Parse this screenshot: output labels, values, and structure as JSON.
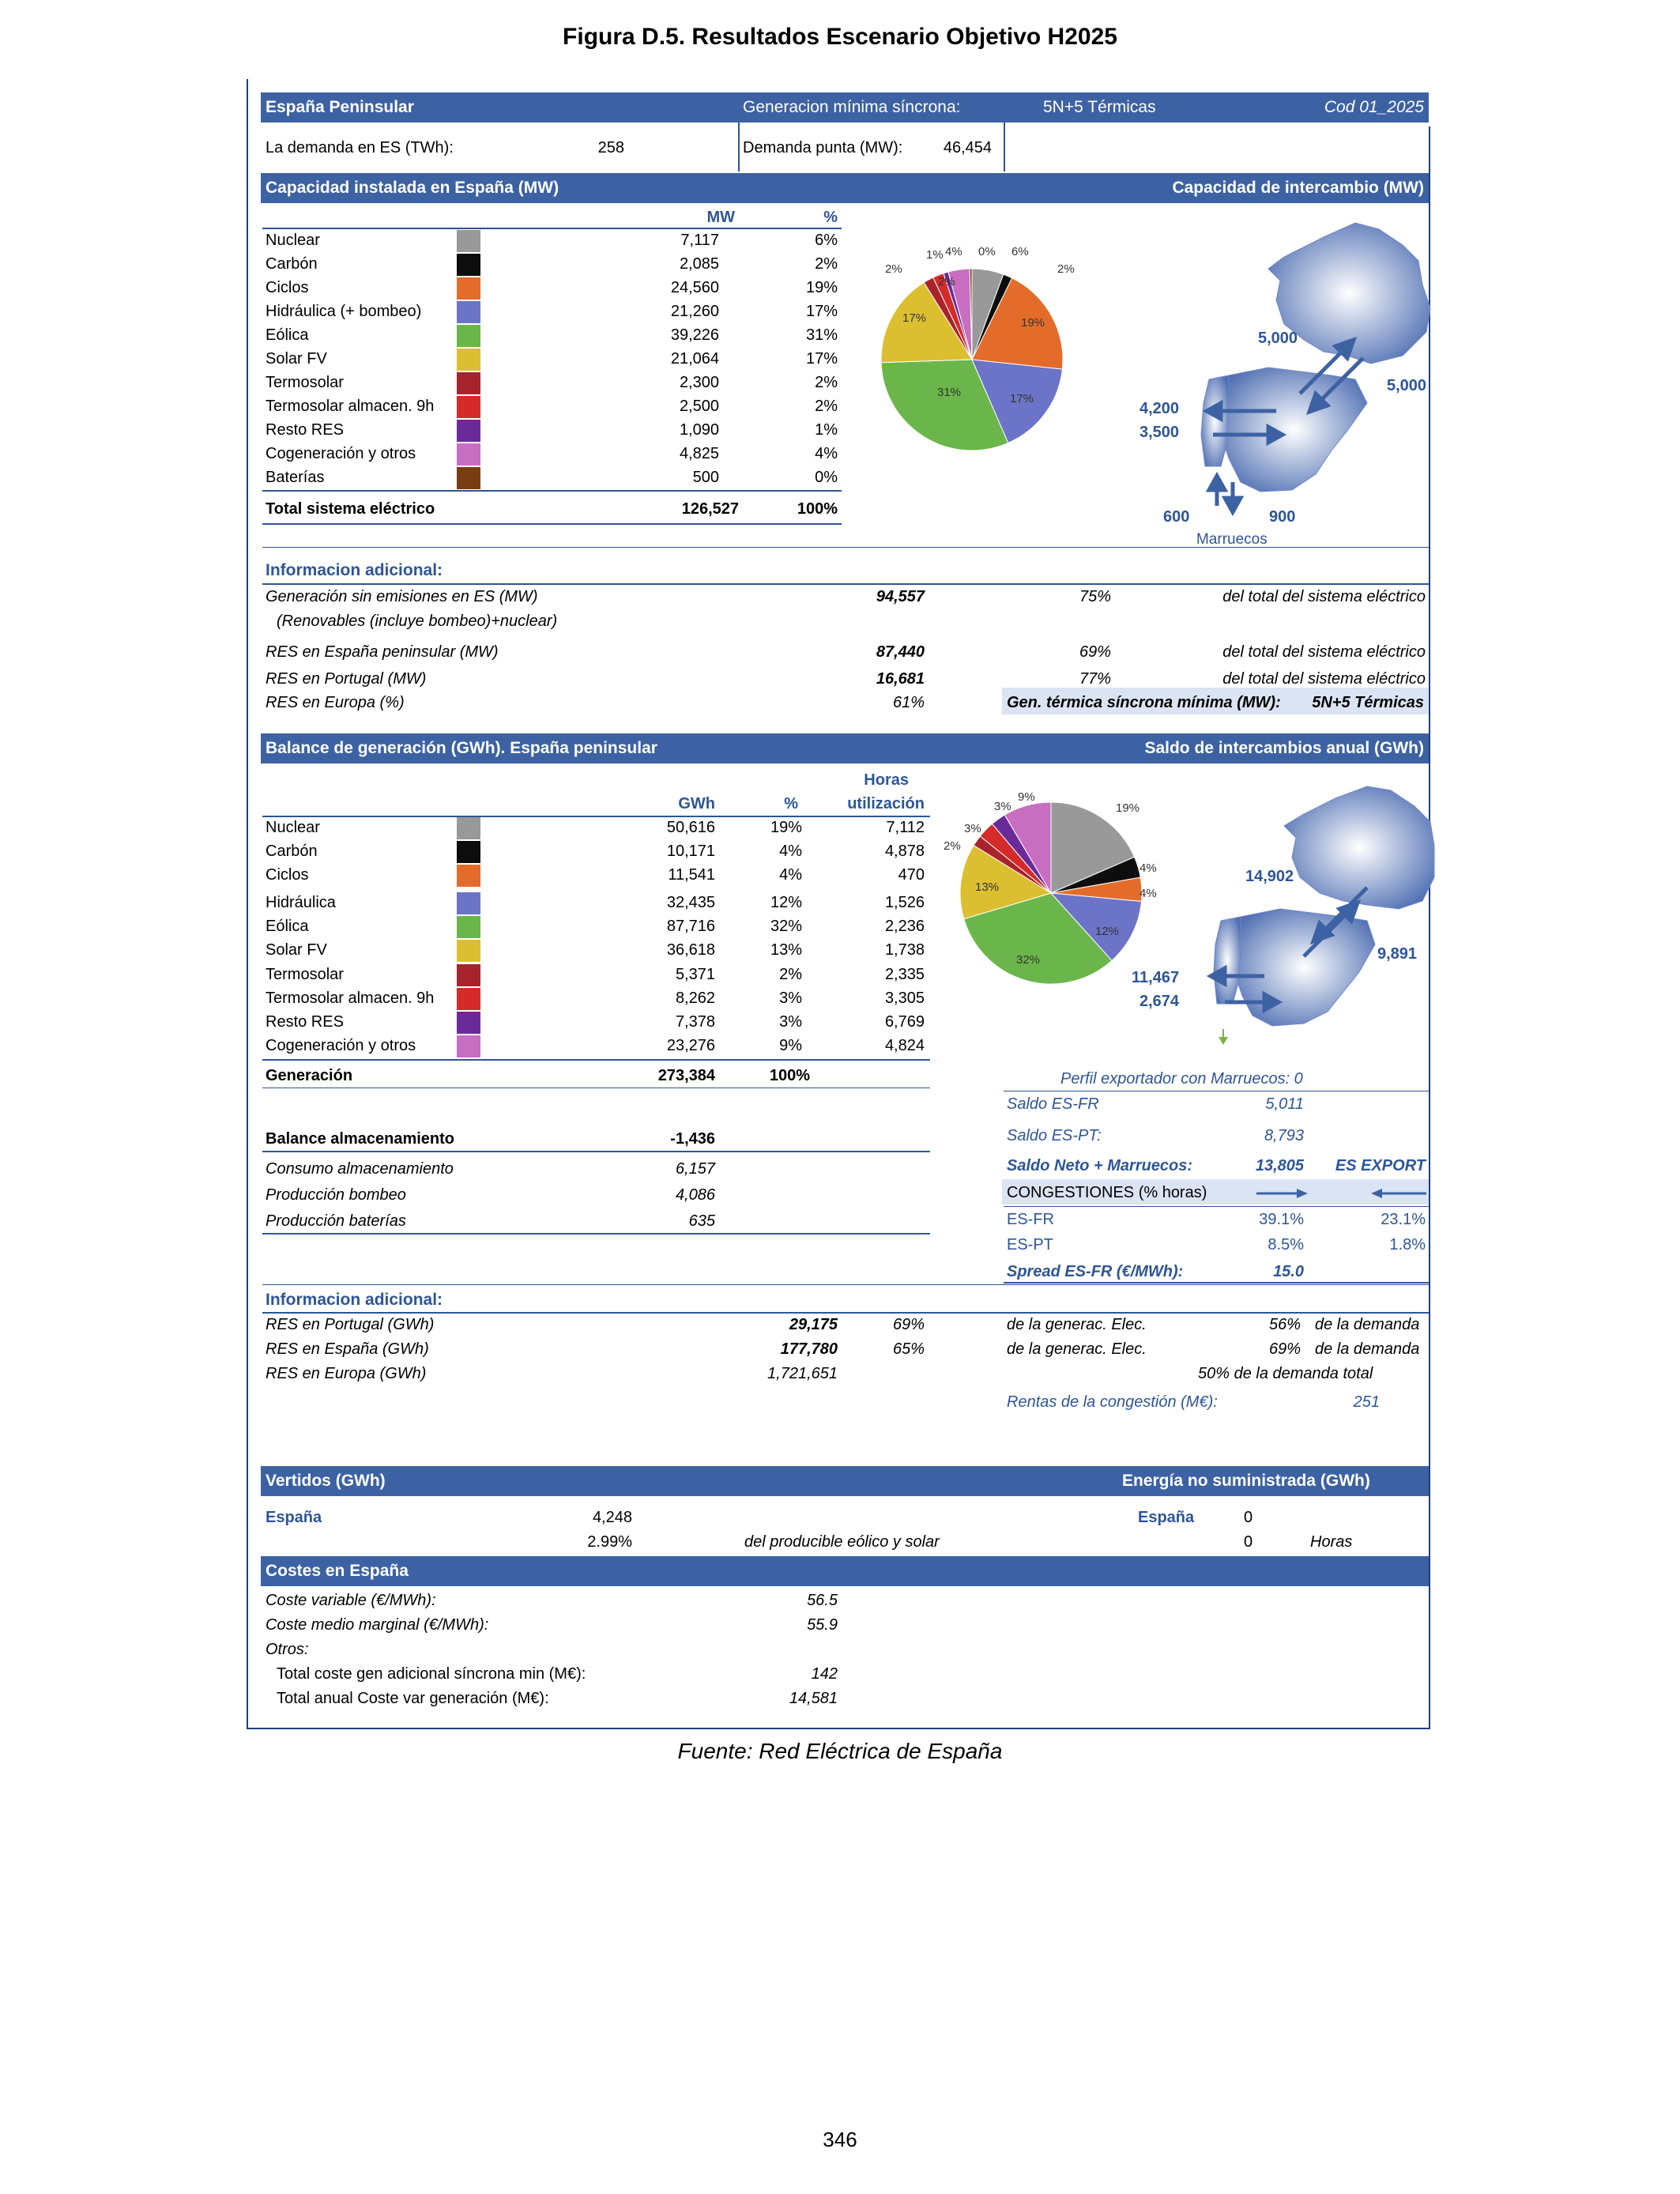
{
  "page_title": "Figura D.5. Resultados Escenario Objetivo H2025",
  "header": {
    "region": "España Peninsular",
    "gen_min_label": "Generacion mínima síncrona:",
    "gen_min_value": "5N+5 Térmicas",
    "code": "Cod 01_2025",
    "demand_label": "La demanda en ES (TWh):",
    "demand_value": "258",
    "peak_label": "Demanda punta (MW):",
    "peak_value": "46,454"
  },
  "capacity": {
    "title": "Capacidad instalada en España (MW)",
    "exchange_title": "Capacidad de intercambio (MW)",
    "col_mw": "MW",
    "col_pct": "%",
    "rows": [
      {
        "name": "Nuclear",
        "mw": "7,117",
        "pct": "6%",
        "color": "#999999"
      },
      {
        "name": "Carbón",
        "mw": "2,085",
        "pct": "2%",
        "color": "#0d0d0d"
      },
      {
        "name": "Ciclos",
        "mw": "24,560",
        "pct": "19%",
        "color": "#e46c2a"
      },
      {
        "name": "Hidráulica (+ bombeo)",
        "mw": "21,260",
        "pct": "17%",
        "color": "#6b74c6"
      },
      {
        "name": "Eólica",
        "mw": "39,226",
        "pct": "31%",
        "color": "#6ab64a"
      },
      {
        "name": "Solar FV",
        "mw": "21,064",
        "pct": "17%",
        "color": "#dcbf30"
      },
      {
        "name": "Termosolar",
        "mw": "2,300",
        "pct": "2%",
        "color": "#a8232c"
      },
      {
        "name": "Termosolar almacen. 9h",
        "mw": "2,500",
        "pct": "2%",
        "color": "#d42a2a"
      },
      {
        "name": "Resto RES",
        "mw": "1,090",
        "pct": "1%",
        "color": "#6a2b98"
      },
      {
        "name": "Cogeneración y otros",
        "mw": "4,825",
        "pct": "4%",
        "color": "#c86ec0"
      },
      {
        "name": "Baterías",
        "mw": "500",
        "pct": "0%",
        "color": "#7a3d12"
      }
    ],
    "total_label": "Total sistema eléctrico",
    "total_mw": "126,527",
    "total_pct": "100%",
    "pie_labels": [
      "6%",
      "2%",
      "19%",
      "17%",
      "31%",
      "17%",
      "2%",
      "2%",
      "1%",
      "4%",
      "0%"
    ],
    "map": {
      "fr_export": "5,000",
      "fr_import": "5,000",
      "pt_import": "4,200",
      "pt_export": "3,500",
      "ma_import": "600",
      "ma_export": "900",
      "ma_label": "Marruecos"
    }
  },
  "info1": {
    "title": "Informacion adicional:",
    "rows": [
      {
        "label": "Generación sin emisiones en ES (MW)",
        "value": "94,557",
        "pct": "75%",
        "note": "del total del sistema eléctrico"
      },
      {
        "label": "RES en España peninsular (MW)",
        "value": "87,440",
        "pct": "69%",
        "note": "del total del sistema eléctrico"
      },
      {
        "label": "RES en Portugal (MW)",
        "value": "16,681",
        "pct": "77%",
        "note": "del total del sistema eléctrico"
      }
    ],
    "sublabel": "(Renovables (incluye bombeo)+nuclear)",
    "eu_label": "RES en Europa (%)",
    "eu_value": "61%",
    "gen_label": "Gen. térmica síncrona mínima (MW):",
    "gen_value": "5N+5 Térmicas"
  },
  "balance": {
    "title": "Balance de generación (GWh). España peninsular",
    "exchange_title": "Saldo de intercambios anual  (GWh)",
    "col_gwh": "GWh",
    "col_pct": "%",
    "col_hours1": "Horas",
    "col_hours2": "utilización",
    "rows": [
      {
        "name": "Nuclear",
        "gwh": "50,616",
        "pct": "19%",
        "hours": "7,112",
        "color": "#999999"
      },
      {
        "name": "Carbón",
        "gwh": "10,171",
        "pct": "4%",
        "hours": "4,878",
        "color": "#0d0d0d"
      },
      {
        "name": "Ciclos",
        "gwh": "11,541",
        "pct": "4%",
        "hours": "470",
        "color": "#e46c2a"
      },
      {
        "name": "Hidráulica",
        "gwh": "32,435",
        "pct": "12%",
        "hours": "1,526",
        "color": "#6b74c6"
      },
      {
        "name": "Eólica",
        "gwh": "87,716",
        "pct": "32%",
        "hours": "2,236",
        "color": "#6ab64a"
      },
      {
        "name": "Solar FV",
        "gwh": "36,618",
        "pct": "13%",
        "hours": "1,738",
        "color": "#dcbf30"
      },
      {
        "name": "Termosolar",
        "gwh": "5,371",
        "pct": "2%",
        "hours": "2,335",
        "color": "#a8232c"
      },
      {
        "name": "Termosolar almacen. 9h",
        "gwh": "8,262",
        "pct": "3%",
        "hours": "3,305",
        "color": "#d42a2a"
      },
      {
        "name": "Resto RES",
        "gwh": "7,378",
        "pct": "3%",
        "hours": "6,769",
        "color": "#6a2b98"
      },
      {
        "name": "Cogeneración y otros",
        "gwh": "23,276",
        "pct": "9%",
        "hours": "4,824",
        "color": "#c86ec0"
      }
    ],
    "total_label": "Generación",
    "total_gwh": "273,384",
    "total_pct": "100%",
    "pie_labels": [
      "19%",
      "4%",
      "4%",
      "12%",
      "32%",
      "13%",
      "2%",
      "3%",
      "3%",
      "9%"
    ],
    "storage_label": "Balance almacenamiento",
    "storage_value": "-1,436",
    "storage_rows": [
      {
        "label": "Consumo almacenamiento",
        "value": "6,157"
      },
      {
        "label": "Producción bombeo",
        "value": "4,086"
      },
      {
        "label": "Producción baterías",
        "value": "635"
      }
    ],
    "map": {
      "fr": "14,902",
      "fr2": "9,891",
      "pt1": "11,467",
      "pt2": "2,674"
    },
    "morocco_profile": "Perfil exportador con Marruecos:  0",
    "saldo_fr_label": "Saldo ES-FR",
    "saldo_fr": "5,011",
    "saldo_pt_label": "Saldo ES-PT:",
    "saldo_pt": "8,793",
    "saldo_net_label": "Saldo Neto + Marruecos:",
    "saldo_net": "13,805",
    "saldo_net_status": "ES EXPORT",
    "cong_label": "CONGESTIONES (% horas)",
    "cong_rows": [
      {
        "label": "ES-FR",
        "exp": "39.1%",
        "imp": "23.1%"
      },
      {
        "label": "ES-PT",
        "exp": "8.5%",
        "imp": "1.8%"
      }
    ],
    "spread_label": "Spread ES-FR (€/MWh):",
    "spread_value": "15.0"
  },
  "info2": {
    "title": "Informacion adicional:",
    "rows": [
      {
        "label": "RES en Portugal (GWh)",
        "value": "29,175",
        "pct": "69%",
        "note": "de la generac. Elec.",
        "pct2": "56%",
        "note2": "de la demanda"
      },
      {
        "label": "RES en España (GWh)",
        "value": "177,780",
        "pct": "65%",
        "note": "de la generac. Elec.",
        "pct2": "69%",
        "note2": "de la demanda"
      }
    ],
    "eu_label": "RES en Europa (GWh)",
    "eu_value": "1,721,651",
    "eu_note": "50%  de la demanda total",
    "rent_label": "Rentas de la congestión (M€):",
    "rent_value": "251"
  },
  "vertidos": {
    "title": "Vertidos (GWh)",
    "ens_title": "Energía no suministrada (GWh)",
    "es_label": "España",
    "es_value": "4,248",
    "es_pct": "2.99%",
    "es_note": "del producible eólico y solar",
    "ens_label": "España",
    "ens_value": "0",
    "ens_hours": "0",
    "ens_hours_label": "Horas"
  },
  "costs": {
    "title": "Costes en España",
    "rows": [
      {
        "label": "Coste variable (€/MWh):",
        "value": "56.5",
        "style": "it"
      },
      {
        "label": "Coste medio marginal (€/MWh):",
        "value": "55.9",
        "style": "it"
      },
      {
        "label": "Otros:",
        "value": "",
        "style": "it"
      },
      {
        "label": "Total coste gen adicional síncrona min (M€):",
        "value": "142",
        "style": "ind"
      },
      {
        "label": "Total anual Coste var generación (M€):",
        "value": "14,581",
        "style": "ind"
      }
    ]
  },
  "source": "Fuente: Red Eléctrica de España",
  "page_number": "346"
}
